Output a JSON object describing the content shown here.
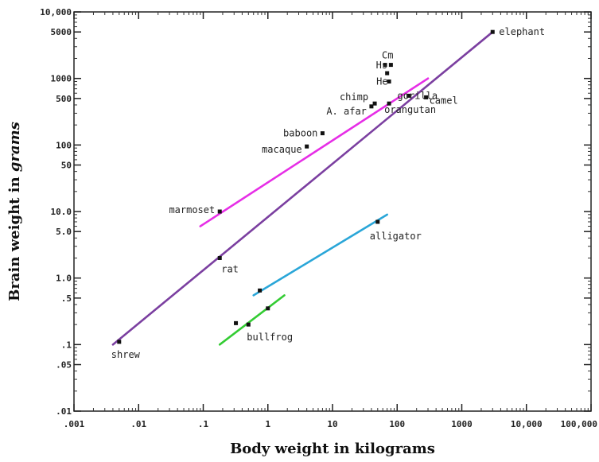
{
  "chart_data": {
    "type": "scatter",
    "title": "",
    "xlabel": "Body weight in kilograms",
    "ylabel_prefix": "Brain weight in ",
    "ylabel_unit": "grams",
    "x_scale": "log",
    "y_scale": "log",
    "xlim": [
      0.001,
      100000
    ],
    "ylim": [
      0.01,
      10000
    ],
    "x_ticks": [
      {
        "value": 0.001,
        "label": ".001"
      },
      {
        "value": 0.01,
        "label": ".01"
      },
      {
        "value": 0.1,
        "label": ".1"
      },
      {
        "value": 1,
        "label": "1"
      },
      {
        "value": 10,
        "label": "10"
      },
      {
        "value": 100,
        "label": "100"
      },
      {
        "value": 1000,
        "label": "1000"
      },
      {
        "value": 10000,
        "label": "10,000"
      },
      {
        "value": 100000,
        "label": "100,000"
      }
    ],
    "y_ticks": [
      {
        "value": 10000,
        "label": "10,000"
      },
      {
        "value": 5000,
        "label": "5000"
      },
      {
        "value": 1000,
        "label": "1000"
      },
      {
        "value": 500,
        "label": "500"
      },
      {
        "value": 100,
        "label": "100"
      },
      {
        "value": 50,
        "label": "50"
      },
      {
        "value": 10,
        "label": "10.0"
      },
      {
        "value": 5,
        "label": "5.0"
      },
      {
        "value": 1,
        "label": "1.0"
      },
      {
        "value": 0.5,
        "label": ".5"
      },
      {
        "value": 0.1,
        "label": ".1"
      },
      {
        "value": 0.05,
        "label": ".05"
      },
      {
        "value": 0.01,
        "label": ".01"
      }
    ],
    "points": [
      {
        "label": "elephant",
        "x": 3000,
        "y": 5000
      },
      {
        "label": "Cm",
        "x": 65,
        "y": 1600
      },
      {
        "label": "",
        "x": 80,
        "y": 1600
      },
      {
        "label": "Hs",
        "x": 70,
        "y": 1200
      },
      {
        "label": "He",
        "x": 75,
        "y": 900
      },
      {
        "label": "gorilla",
        "x": 150,
        "y": 550
      },
      {
        "label": "camel",
        "x": 280,
        "y": 520
      },
      {
        "label": "chimp",
        "x": 45,
        "y": 420
      },
      {
        "label": "A. afar",
        "x": 40,
        "y": 380
      },
      {
        "label": "orangutan",
        "x": 75,
        "y": 420
      },
      {
        "label": "baboon",
        "x": 7,
        "y": 150
      },
      {
        "label": "macaque",
        "x": 4,
        "y": 95
      },
      {
        "label": "marmoset",
        "x": 0.18,
        "y": 10
      },
      {
        "label": "rat",
        "x": 0.18,
        "y": 2
      },
      {
        "label": "shrew",
        "x": 0.005,
        "y": 0.11
      },
      {
        "label": "alligator",
        "x": 50,
        "y": 7
      },
      {
        "label": "",
        "x": 0.75,
        "y": 0.65
      },
      {
        "label": "",
        "x": 1,
        "y": 0.35
      },
      {
        "label": "",
        "x": 0.32,
        "y": 0.21
      },
      {
        "label": "bullfrog",
        "x": 0.5,
        "y": 0.2
      }
    ],
    "lines": [
      {
        "color": "#7b3fa0",
        "x": [
          0.004,
          3000
        ],
        "y": [
          0.1,
          5000
        ]
      },
      {
        "color": "#e62ee6",
        "x": [
          0.09,
          300
        ],
        "y": [
          6,
          1000
        ]
      },
      {
        "color": "#2aa6d8",
        "x": [
          0.6,
          70
        ],
        "y": [
          0.55,
          9
        ]
      },
      {
        "color": "#33cc33",
        "x": [
          0.18,
          1.8
        ],
        "y": [
          0.1,
          0.55
        ]
      }
    ]
  }
}
